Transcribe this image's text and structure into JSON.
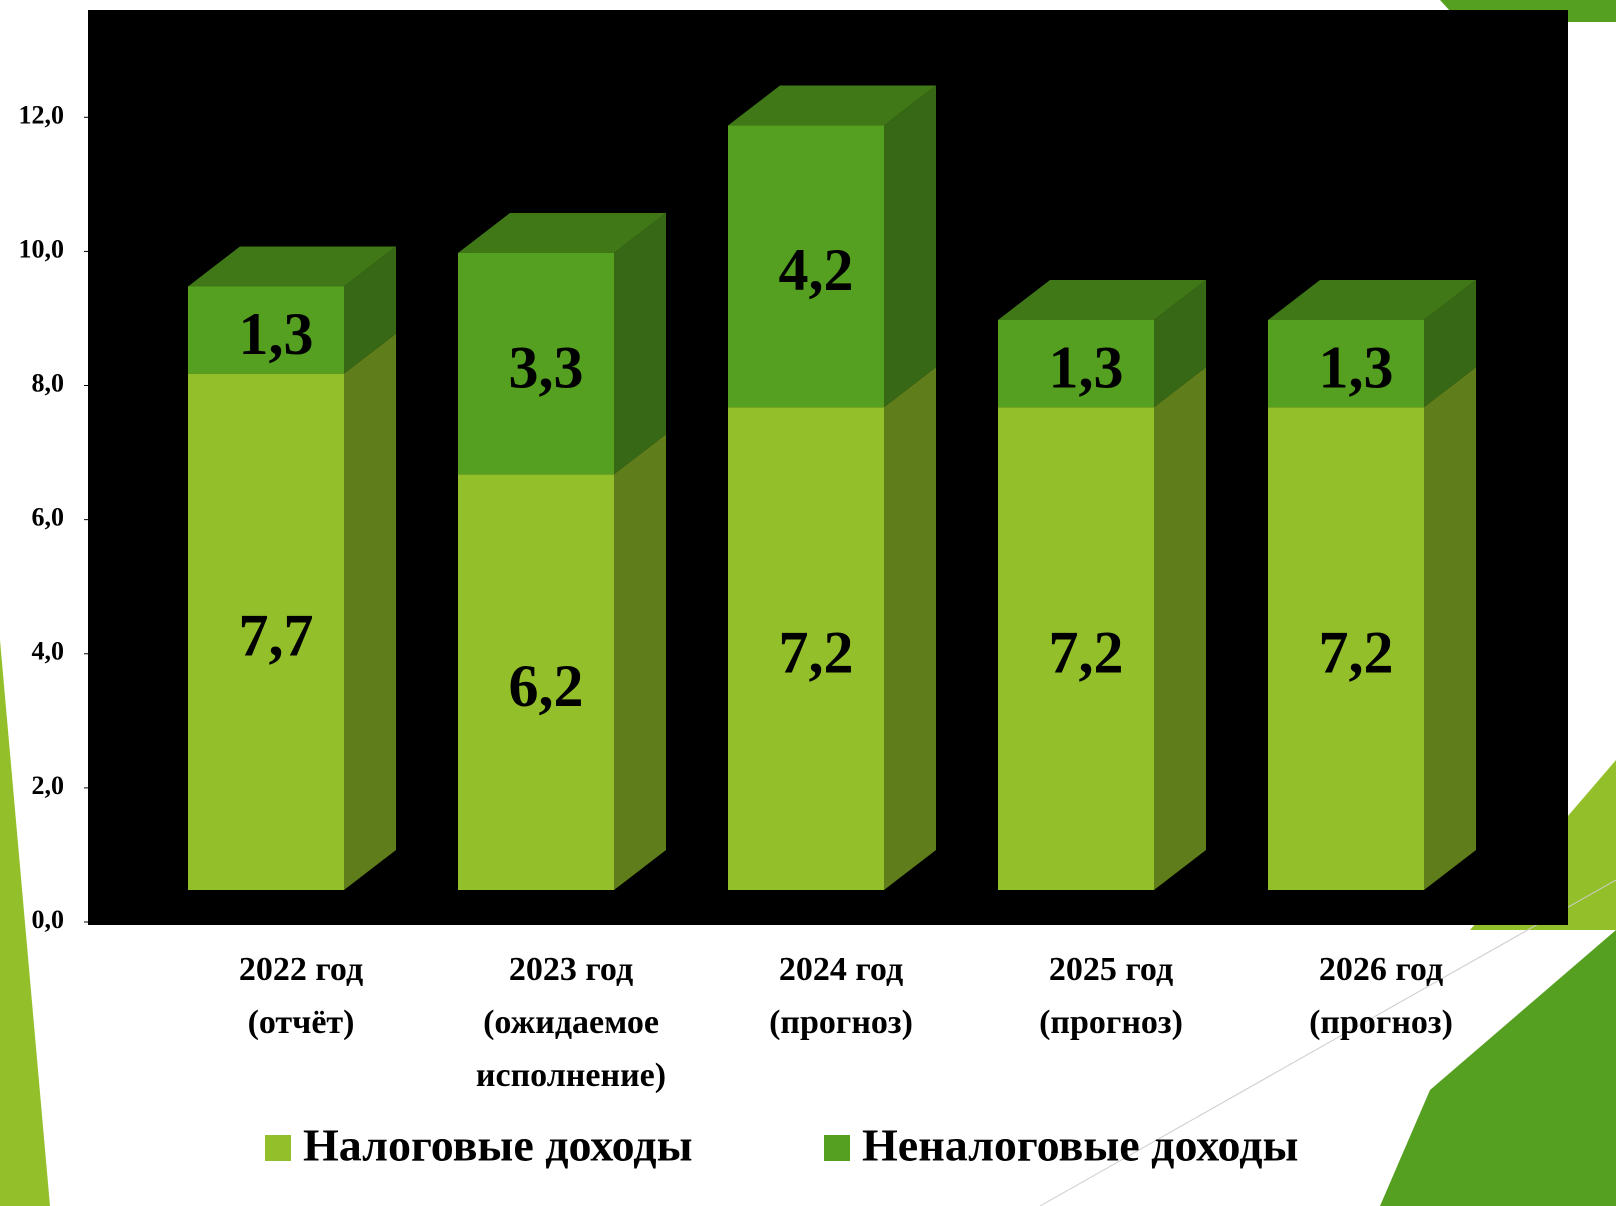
{
  "chart_data": {
    "type": "bar3d_stacked",
    "categories": [
      [
        "2022 год",
        "(отчёт)"
      ],
      [
        "2023 год",
        "(ожидаемое",
        "исполнение)"
      ],
      [
        "2024 год",
        "(прогноз)"
      ],
      [
        "2025 год",
        "(прогноз)"
      ],
      [
        "2026 год",
        "(прогноз)"
      ]
    ],
    "series": [
      {
        "name": "Налоговые доходы",
        "color": "#93c02a",
        "values": [
          7.7,
          6.2,
          7.2,
          7.2,
          7.2
        ],
        "value_labels": [
          "7,7",
          "6,2",
          "7,2",
          "7,2",
          "7,2"
        ]
      },
      {
        "name": "Неналоговые доходы",
        "color": "#55a020",
        "values": [
          1.3,
          3.3,
          4.2,
          1.3,
          1.3
        ],
        "value_labels": [
          "1,3",
          "3,3",
          "4,2",
          "1,3",
          "1,3"
        ]
      }
    ],
    "ylim": [
      0,
      13.6
    ],
    "yticks": [
      {
        "value": 0,
        "label": "0,0"
      },
      {
        "value": 2,
        "label": "2,0"
      },
      {
        "value": 4,
        "label": "4,0"
      },
      {
        "value": 6,
        "label": "6,0"
      },
      {
        "value": 8,
        "label": "8,0"
      },
      {
        "value": 10,
        "label": "10,0"
      },
      {
        "value": 12,
        "label": "12,0"
      }
    ],
    "legend": "bottom"
  }
}
